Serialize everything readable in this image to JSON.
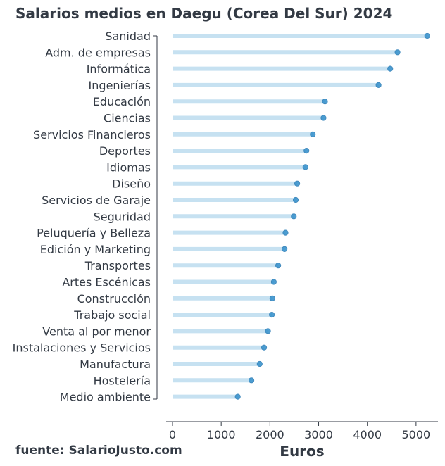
{
  "chart_data": {
    "type": "lollipop",
    "title": "Salarios medios en Daegu (Corea Del Sur) 2024",
    "xlabel": "Euros",
    "source": "fuente: SalarioJusto.com",
    "xlim": [
      -130,
      5450
    ],
    "xticks": [
      0,
      1000,
      2000,
      3000,
      4000,
      5000
    ],
    "categories": [
      "Sanidad",
      "Adm. de empresas",
      "Informática",
      "Ingenierías",
      "Educación",
      "Ciencias",
      "Servicios Financieros",
      "Deportes",
      "Idiomas",
      "Diseño",
      "Servicios de Garaje",
      "Seguridad",
      "Peluquería y Belleza",
      "Edición y Marketing",
      "Transportes",
      "Artes Escénicas",
      "Construcción",
      "Trabajo social",
      "Venta al por menor",
      "Instalaciones y Servicios",
      "Manufactura",
      "Hostelería",
      "Medio ambiente"
    ],
    "values": [
      5230,
      4620,
      4470,
      4230,
      3130,
      3100,
      2880,
      2750,
      2730,
      2560,
      2530,
      2490,
      2320,
      2300,
      2170,
      2080,
      2050,
      2040,
      1960,
      1880,
      1790,
      1620,
      1340
    ],
    "colors": {
      "stem": "#c6e1f1",
      "dot": "#3a93cd",
      "text": "#333a44"
    }
  }
}
